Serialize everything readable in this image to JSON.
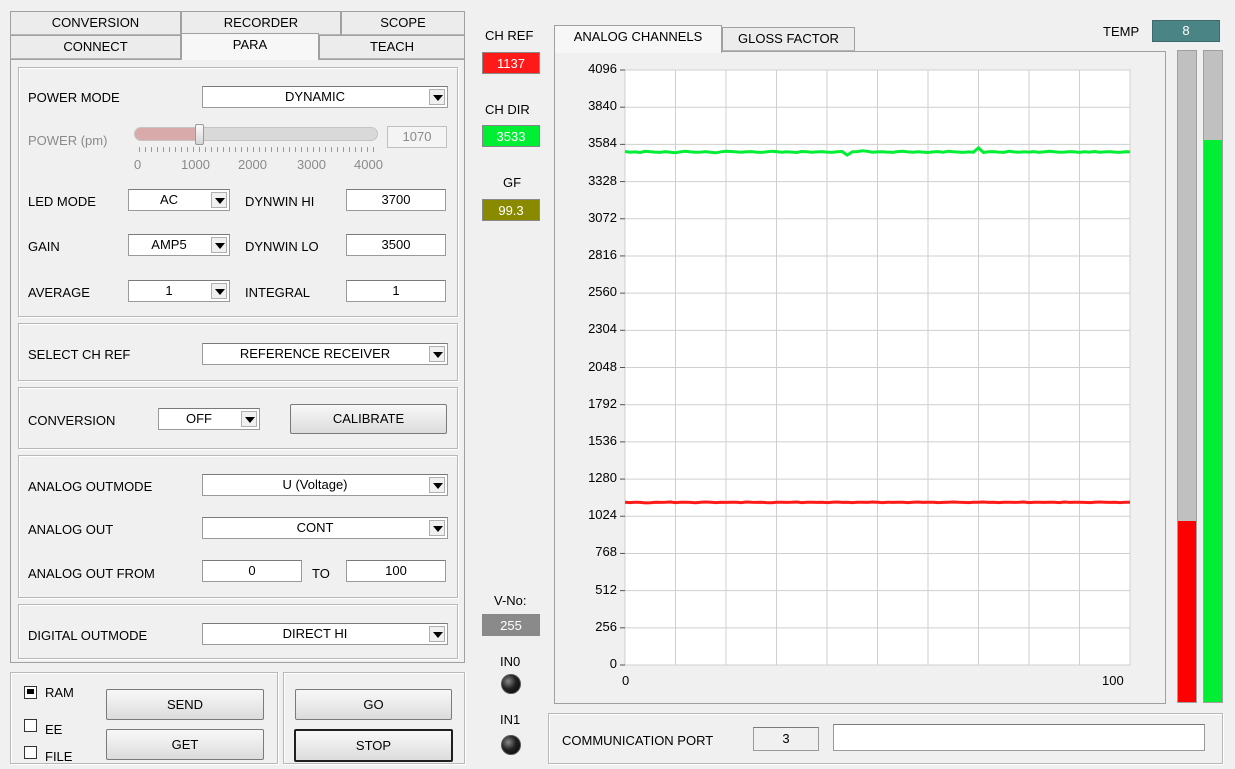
{
  "tabs_top_row": [
    "CONVERSION",
    "RECORDER",
    "SCOPE"
  ],
  "tabs_bottom_row": [
    "CONNECT",
    "PARA",
    "TEACH"
  ],
  "active_tab": "PARA",
  "para": {
    "power_mode_label": "POWER MODE",
    "power_mode_value": "DYNAMIC",
    "power_label": "POWER (pm)",
    "power_value": "1070",
    "power_slider_level": 1070,
    "power_slider_max": 4000,
    "power_scale": [
      "0",
      "1000",
      "2000",
      "3000",
      "4000"
    ],
    "led_mode_label": "LED MODE",
    "led_mode_value": "AC",
    "dynwin_hi_label": "DYNWIN HI",
    "dynwin_hi_value": "3700",
    "gain_label": "GAIN",
    "gain_value": "AMP5",
    "dynwin_lo_label": "DYNWIN LO",
    "dynwin_lo_value": "3500",
    "average_label": "AVERAGE",
    "average_value": "1",
    "integral_label": "INTEGRAL",
    "integral_value": "1",
    "select_ch_ref_label": "SELECT CH REF",
    "select_ch_ref_value": "REFERENCE RECEIVER",
    "conversion_label": "CONVERSION",
    "conversion_value": "OFF",
    "calibrate_label": "CALIBRATE",
    "analog_outmode_label": "ANALOG OUTMODE",
    "analog_outmode_value": "U (Voltage)",
    "analog_out_label": "ANALOG OUT",
    "analog_out_value": "CONT",
    "analog_out_from_label": "ANALOG OUT FROM",
    "analog_out_from_value": "0",
    "to_label": "TO",
    "analog_out_to_value": "100",
    "digital_outmode_label": "DIGITAL OUTMODE",
    "digital_outmode_value": "DIRECT HI"
  },
  "bottom": {
    "ram_label": "RAM",
    "ram_checked": true,
    "ee_label": "EE",
    "ee_checked": false,
    "file_label": "FILE",
    "file_checked": false,
    "send_label": "SEND",
    "get_label": "GET",
    "go_label": "GO",
    "stop_label": "STOP"
  },
  "indicators": {
    "ch_ref_label": "CH REF",
    "ch_ref_value": "1137",
    "ch_ref_color": "#ff1a1a",
    "ch_dir_label": "CH DIR",
    "ch_dir_value": "3533",
    "ch_dir_color": "#00ee33",
    "gf_label": "GF",
    "gf_value": "99.3",
    "gf_color": "#8a8a00",
    "v_no_label": "V-No:",
    "v_no_value": "255",
    "in0_label": "IN0",
    "in1_label": "IN1",
    "temp_label": "TEMP",
    "temp_value": "8"
  },
  "chart_tabs": [
    "ANALOG CHANNELS",
    "GLOSS FACTOR"
  ],
  "active_chart_tab": "ANALOG CHANNELS",
  "chart_data": {
    "type": "line",
    "xlim": [
      0,
      100
    ],
    "ylim": [
      0,
      4096
    ],
    "x_ticks": [
      "0",
      "100"
    ],
    "y_ticks": [
      0,
      256,
      512,
      768,
      1024,
      1280,
      1536,
      1792,
      2048,
      2304,
      2560,
      2816,
      3072,
      3328,
      3584,
      3840,
      4096
    ],
    "grid": true,
    "series": [
      {
        "color": "#00ee33",
        "values": [
          3535,
          3530,
          3532,
          3528,
          3536,
          3533,
          3531,
          3529,
          3534,
          3530,
          3527,
          3533,
          3536,
          3532,
          3530,
          3531,
          3534,
          3529,
          3526,
          3533,
          3536,
          3535,
          3532,
          3530,
          3533,
          3534,
          3531,
          3529,
          3532,
          3536,
          3534,
          3530,
          3533,
          3531,
          3528,
          3535,
          3533,
          3530,
          3532,
          3534,
          3531,
          3529,
          3533,
          3535,
          3510,
          3533,
          3534,
          3540,
          3536,
          3530,
          3532,
          3533,
          3531,
          3529,
          3534,
          3536,
          3532,
          3530,
          3533,
          3531,
          3528,
          3532,
          3534,
          3530,
          3536,
          3533,
          3531,
          3529,
          3532,
          3530,
          3560,
          3528,
          3533,
          3534,
          3531,
          3529,
          3536,
          3532,
          3530,
          3533,
          3531,
          3534,
          3529,
          3532,
          3536,
          3533,
          3530,
          3531,
          3534,
          3532,
          3529,
          3533,
          3531,
          3535,
          3530,
          3532,
          3534,
          3531,
          3529,
          3533,
          3532
        ]
      },
      {
        "color": "#ff1a1a",
        "values": [
          1120,
          1118,
          1121,
          1119,
          1116,
          1117,
          1121,
          1119,
          1120,
          1122,
          1118,
          1120,
          1121,
          1119,
          1117,
          1120,
          1122,
          1121,
          1118,
          1120,
          1119,
          1121,
          1120,
          1118,
          1122,
          1120,
          1119,
          1121,
          1118,
          1117,
          1120,
          1121,
          1119,
          1120,
          1122,
          1118,
          1120,
          1121,
          1119,
          1120,
          1118,
          1121,
          1122,
          1119,
          1120,
          1118,
          1121,
          1120,
          1119,
          1122,
          1120,
          1118,
          1121,
          1119,
          1120,
          1121,
          1118,
          1120,
          1122,
          1119,
          1121,
          1120,
          1118,
          1119,
          1121,
          1122,
          1120,
          1119,
          1118,
          1121,
          1120,
          1122,
          1119,
          1121,
          1118,
          1120,
          1121,
          1119,
          1120,
          1122,
          1118,
          1121,
          1120,
          1119,
          1121,
          1120,
          1118,
          1122,
          1119,
          1120,
          1121,
          1119,
          1118,
          1120,
          1122,
          1121,
          1119,
          1120,
          1118,
          1121,
          1120
        ]
      }
    ]
  },
  "bars": {
    "red_value": 1137,
    "red_color": "#ff0000",
    "green_value": 3533,
    "green_color": "#00ee33",
    "max": 4096
  },
  "comm": {
    "label": "COMMUNICATION PORT",
    "port": "3",
    "status": ""
  }
}
